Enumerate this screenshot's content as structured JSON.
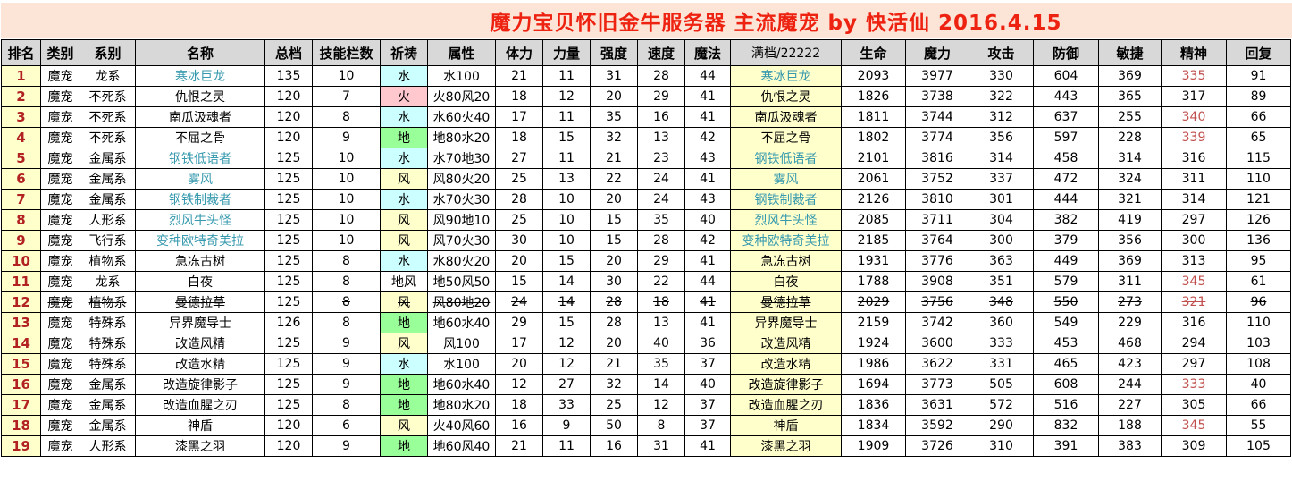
{
  "title": "魔力宝贝怀旧金牛服务器 主流魔宠 by 快活仙 2016.4.15",
  "colors": {
    "title_bg": "#FCE4D6",
    "title_text": "#EE2211",
    "header_bg": "#D8D8D8",
    "rank_bg": "#FFFFCC",
    "rank_text": "#B22222",
    "full_col_bg": "#FFFFCC",
    "name_teal": "#3699AE",
    "spirit_red": "#C0504D",
    "pray": {
      "cyan": "#CCFFFF",
      "pink": "#FFC7CE",
      "green": "#99FF99",
      "yellow": "#FFFFCC",
      "none": ""
    }
  },
  "table": {
    "columns": [
      {
        "key": "rank",
        "label": "排名",
        "width": 44
      },
      {
        "key": "category",
        "label": "类别",
        "width": 44
      },
      {
        "key": "family",
        "label": "系别",
        "width": 62
      },
      {
        "key": "name",
        "label": "名称",
        "width": 145
      },
      {
        "key": "total",
        "label": "总档",
        "width": 53
      },
      {
        "key": "skills",
        "label": "技能栏数",
        "width": 76
      },
      {
        "key": "pray",
        "label": "祈祷",
        "width": 53
      },
      {
        "key": "attribute",
        "label": "属性",
        "width": 76
      },
      {
        "key": "stamina",
        "label": "体力",
        "width": 53
      },
      {
        "key": "strength",
        "label": "力量",
        "width": 53
      },
      {
        "key": "toughness",
        "label": "强度",
        "width": 53
      },
      {
        "key": "speed",
        "label": "速度",
        "width": 53
      },
      {
        "key": "magic",
        "label": "魔法",
        "width": 51
      },
      {
        "key": "full",
        "label": "满档/22222",
        "width": 124,
        "bold": false
      },
      {
        "key": "hp",
        "label": "生命",
        "width": 72
      },
      {
        "key": "mp",
        "label": "魔力",
        "width": 71
      },
      {
        "key": "atk",
        "label": "攻击",
        "width": 72
      },
      {
        "key": "def",
        "label": "防御",
        "width": 73
      },
      {
        "key": "agi",
        "label": "敏捷",
        "width": 70
      },
      {
        "key": "spirit",
        "label": "精神",
        "width": 73
      },
      {
        "key": "recover",
        "label": "回复",
        "width": 72
      }
    ],
    "rows": [
      {
        "rank": "1",
        "category": "魔宠",
        "family": "龙系",
        "name": "寒冰巨龙",
        "name_teal": true,
        "total": "135",
        "skills": "10",
        "pray": "水",
        "pray_color": "cyan",
        "attribute": "水100",
        "stamina": "21",
        "strength": "11",
        "toughness": "31",
        "speed": "28",
        "magic": "44",
        "full": "寒冰巨龙",
        "hp": "2093",
        "mp": "3977",
        "atk": "330",
        "def": "604",
        "agi": "369",
        "spirit": "335",
        "spirit_red": true,
        "recover": "91",
        "strike": false
      },
      {
        "rank": "2",
        "category": "魔宠",
        "family": "不死系",
        "name": "仇恨之灵",
        "name_teal": false,
        "total": "120",
        "skills": "7",
        "pray": "火",
        "pray_color": "pink",
        "attribute": "火80风20",
        "stamina": "18",
        "strength": "12",
        "toughness": "20",
        "speed": "29",
        "magic": "41",
        "full": "仇恨之灵",
        "hp": "1826",
        "mp": "3738",
        "atk": "322",
        "def": "443",
        "agi": "365",
        "spirit": "317",
        "spirit_red": false,
        "recover": "89",
        "strike": false
      },
      {
        "rank": "3",
        "category": "魔宠",
        "family": "不死系",
        "name": "南瓜汲魂者",
        "name_teal": false,
        "total": "120",
        "skills": "8",
        "pray": "水",
        "pray_color": "cyan",
        "attribute": "水60火40",
        "stamina": "17",
        "strength": "11",
        "toughness": "35",
        "speed": "16",
        "magic": "41",
        "full": "南瓜汲魂者",
        "hp": "1811",
        "mp": "3744",
        "atk": "312",
        "def": "637",
        "agi": "255",
        "spirit": "340",
        "spirit_red": true,
        "recover": "66",
        "strike": false
      },
      {
        "rank": "4",
        "category": "魔宠",
        "family": "不死系",
        "name": "不屈之骨",
        "name_teal": false,
        "total": "120",
        "skills": "9",
        "pray": "地",
        "pray_color": "green",
        "attribute": "地80水20",
        "stamina": "18",
        "strength": "15",
        "toughness": "32",
        "speed": "13",
        "magic": "42",
        "full": "不屈之骨",
        "hp": "1802",
        "mp": "3774",
        "atk": "356",
        "def": "597",
        "agi": "228",
        "spirit": "339",
        "spirit_red": true,
        "recover": "65",
        "strike": false
      },
      {
        "rank": "5",
        "category": "魔宠",
        "family": "金属系",
        "name": "钢铁低语者",
        "name_teal": true,
        "total": "125",
        "skills": "10",
        "pray": "水",
        "pray_color": "cyan",
        "attribute": "水70地30",
        "stamina": "27",
        "strength": "11",
        "toughness": "21",
        "speed": "23",
        "magic": "43",
        "full": "钢铁低语者",
        "hp": "2101",
        "mp": "3816",
        "atk": "314",
        "def": "458",
        "agi": "314",
        "spirit": "316",
        "spirit_red": false,
        "recover": "115",
        "strike": false
      },
      {
        "rank": "6",
        "category": "魔宠",
        "family": "金属系",
        "name": "雾风",
        "name_teal": true,
        "total": "125",
        "skills": "10",
        "pray": "风",
        "pray_color": "yellow",
        "attribute": "风80火20",
        "stamina": "25",
        "strength": "13",
        "toughness": "22",
        "speed": "24",
        "magic": "41",
        "full": "雾风",
        "hp": "2061",
        "mp": "3752",
        "atk": "337",
        "def": "472",
        "agi": "324",
        "spirit": "311",
        "spirit_red": false,
        "recover": "110",
        "strike": false
      },
      {
        "rank": "7",
        "category": "魔宠",
        "family": "金属系",
        "name": "钢铁制裁者",
        "name_teal": true,
        "total": "125",
        "skills": "10",
        "pray": "水",
        "pray_color": "cyan",
        "attribute": "水70火30",
        "stamina": "28",
        "strength": "10",
        "toughness": "20",
        "speed": "24",
        "magic": "43",
        "full": "钢铁制裁者",
        "hp": "2126",
        "mp": "3810",
        "atk": "301",
        "def": "444",
        "agi": "321",
        "spirit": "314",
        "spirit_red": false,
        "recover": "121",
        "strike": false
      },
      {
        "rank": "8",
        "category": "魔宠",
        "family": "人形系",
        "name": "烈风牛头怪",
        "name_teal": true,
        "total": "125",
        "skills": "10",
        "pray": "风",
        "pray_color": "yellow",
        "attribute": "风90地10",
        "stamina": "25",
        "strength": "10",
        "toughness": "15",
        "speed": "35",
        "magic": "40",
        "full": "烈风牛头怪",
        "hp": "2085",
        "mp": "3711",
        "atk": "304",
        "def": "382",
        "agi": "419",
        "spirit": "297",
        "spirit_red": false,
        "recover": "126",
        "strike": false
      },
      {
        "rank": "9",
        "category": "魔宠",
        "family": "飞行系",
        "name": "变种欧特奇美拉",
        "name_teal": true,
        "total": "125",
        "skills": "10",
        "pray": "风",
        "pray_color": "yellow",
        "attribute": "风70火30",
        "stamina": "30",
        "strength": "10",
        "toughness": "15",
        "speed": "28",
        "magic": "42",
        "full": "变种欧特奇美拉",
        "hp": "2185",
        "mp": "3764",
        "atk": "300",
        "def": "379",
        "agi": "356",
        "spirit": "300",
        "spirit_red": false,
        "recover": "136",
        "strike": false
      },
      {
        "rank": "10",
        "category": "魔宠",
        "family": "植物系",
        "name": "急冻古树",
        "name_teal": false,
        "total": "125",
        "skills": "8",
        "pray": "水",
        "pray_color": "cyan",
        "attribute": "水80火20",
        "stamina": "20",
        "strength": "15",
        "toughness": "20",
        "speed": "29",
        "magic": "41",
        "full": "急冻古树",
        "hp": "1931",
        "mp": "3776",
        "atk": "363",
        "def": "449",
        "agi": "369",
        "spirit": "313",
        "spirit_red": false,
        "recover": "95",
        "strike": false
      },
      {
        "rank": "11",
        "category": "魔宠",
        "family": "龙系",
        "name": "白夜",
        "name_teal": false,
        "total": "125",
        "skills": "8",
        "pray": "地风",
        "pray_color": "none",
        "attribute": "地50风50",
        "stamina": "15",
        "strength": "14",
        "toughness": "30",
        "speed": "22",
        "magic": "44",
        "full": "白夜",
        "hp": "1788",
        "mp": "3908",
        "atk": "351",
        "def": "579",
        "agi": "311",
        "spirit": "345",
        "spirit_red": true,
        "recover": "61",
        "strike": false
      },
      {
        "rank": "12",
        "category": "魔宠",
        "family": "植物系",
        "name": "曼德拉草",
        "name_teal": false,
        "total": "125",
        "skills": "8",
        "pray": "风",
        "pray_color": "yellow",
        "attribute": "风80地20",
        "stamina": "24",
        "strength": "14",
        "toughness": "28",
        "speed": "18",
        "magic": "41",
        "full": "曼德拉草",
        "hp": "2029",
        "mp": "3756",
        "atk": "348",
        "def": "550",
        "agi": "273",
        "spirit": "321",
        "spirit_red": true,
        "recover": "96",
        "strike": true
      },
      {
        "rank": "13",
        "category": "魔宠",
        "family": "特殊系",
        "name": "异界魔导士",
        "name_teal": false,
        "total": "126",
        "skills": "8",
        "pray": "地",
        "pray_color": "green",
        "attribute": "地60水40",
        "stamina": "29",
        "strength": "15",
        "toughness": "28",
        "speed": "13",
        "magic": "41",
        "full": "异界魔导士",
        "hp": "2159",
        "mp": "3742",
        "atk": "360",
        "def": "549",
        "agi": "229",
        "spirit": "316",
        "spirit_red": false,
        "recover": "110",
        "strike": false
      },
      {
        "rank": "14",
        "category": "魔宠",
        "family": "特殊系",
        "name": "改造风精",
        "name_teal": false,
        "total": "125",
        "skills": "9",
        "pray": "风",
        "pray_color": "yellow",
        "attribute": "风100",
        "stamina": "17",
        "strength": "12",
        "toughness": "20",
        "speed": "40",
        "magic": "36",
        "full": "改造风精",
        "hp": "1924",
        "mp": "3600",
        "atk": "333",
        "def": "453",
        "agi": "468",
        "spirit": "294",
        "spirit_red": false,
        "recover": "103",
        "strike": false
      },
      {
        "rank": "15",
        "category": "魔宠",
        "family": "特殊系",
        "name": "改造水精",
        "name_teal": false,
        "total": "125",
        "skills": "9",
        "pray": "水",
        "pray_color": "cyan",
        "attribute": "水100",
        "stamina": "20",
        "strength": "12",
        "toughness": "21",
        "speed": "35",
        "magic": "37",
        "full": "改造水精",
        "hp": "1986",
        "mp": "3622",
        "atk": "331",
        "def": "465",
        "agi": "423",
        "spirit": "297",
        "spirit_red": false,
        "recover": "108",
        "strike": false
      },
      {
        "rank": "16",
        "category": "魔宠",
        "family": "金属系",
        "name": "改造旋律影子",
        "name_teal": false,
        "total": "125",
        "skills": "9",
        "pray": "地",
        "pray_color": "green",
        "attribute": "地60水40",
        "stamina": "12",
        "strength": "27",
        "toughness": "32",
        "speed": "14",
        "magic": "40",
        "full": "改造旋律影子",
        "hp": "1694",
        "mp": "3773",
        "atk": "505",
        "def": "608",
        "agi": "244",
        "spirit": "333",
        "spirit_red": true,
        "recover": "40",
        "strike": false
      },
      {
        "rank": "17",
        "category": "魔宠",
        "family": "金属系",
        "name": "改造血腥之刃",
        "name_teal": false,
        "total": "125",
        "skills": "8",
        "pray": "地",
        "pray_color": "green",
        "attribute": "地80水20",
        "stamina": "18",
        "strength": "33",
        "toughness": "25",
        "speed": "12",
        "magic": "37",
        "full": "改造血腥之刃",
        "hp": "1836",
        "mp": "3631",
        "atk": "572",
        "def": "516",
        "agi": "227",
        "spirit": "305",
        "spirit_red": false,
        "recover": "66",
        "strike": false
      },
      {
        "rank": "18",
        "category": "魔宠",
        "family": "金属系",
        "name": "神盾",
        "name_teal": false,
        "total": "120",
        "skills": "6",
        "pray": "风",
        "pray_color": "yellow",
        "attribute": "火40风60",
        "stamina": "16",
        "strength": "9",
        "toughness": "50",
        "speed": "8",
        "magic": "37",
        "full": "神盾",
        "hp": "1834",
        "mp": "3592",
        "atk": "290",
        "def": "832",
        "agi": "188",
        "spirit": "345",
        "spirit_red": true,
        "recover": "55",
        "strike": false
      },
      {
        "rank": "19",
        "category": "魔宠",
        "family": "人形系",
        "name": "漆黑之羽",
        "name_teal": false,
        "total": "120",
        "skills": "9",
        "pray": "地",
        "pray_color": "green",
        "attribute": "地60风40",
        "stamina": "21",
        "strength": "11",
        "toughness": "16",
        "speed": "31",
        "magic": "41",
        "full": "漆黑之羽",
        "hp": "1909",
        "mp": "3726",
        "atk": "310",
        "def": "391",
        "agi": "383",
        "spirit": "309",
        "spirit_red": false,
        "recover": "105",
        "strike": false
      }
    ]
  }
}
